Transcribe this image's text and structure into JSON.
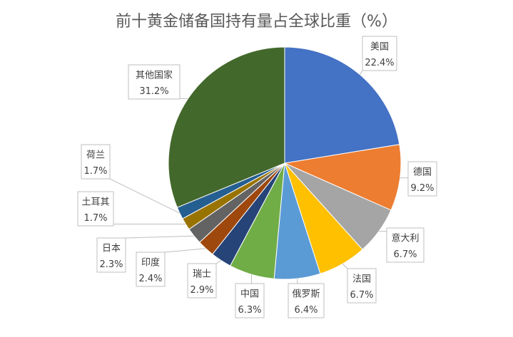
{
  "chart_data": {
    "type": "pie",
    "title": "前十黄金储备国持有量占全球比重（%）",
    "categories": [
      "美国",
      "德国",
      "意大利",
      "法国",
      "俄罗斯",
      "中国",
      "瑞士",
      "印度",
      "日本",
      "土耳其",
      "荷兰",
      "其他国家"
    ],
    "values": [
      22.4,
      9.2,
      6.7,
      6.7,
      6.4,
      6.3,
      2.9,
      2.4,
      2.3,
      1.7,
      1.7,
      31.2
    ],
    "unit": "%",
    "colors": [
      "#4472C4",
      "#ED7D31",
      "#A5A5A5",
      "#FFC000",
      "#5B9BD5",
      "#70AD47",
      "#264478",
      "#9E480E",
      "#636363",
      "#997300",
      "#255E91",
      "#43682B"
    ]
  }
}
